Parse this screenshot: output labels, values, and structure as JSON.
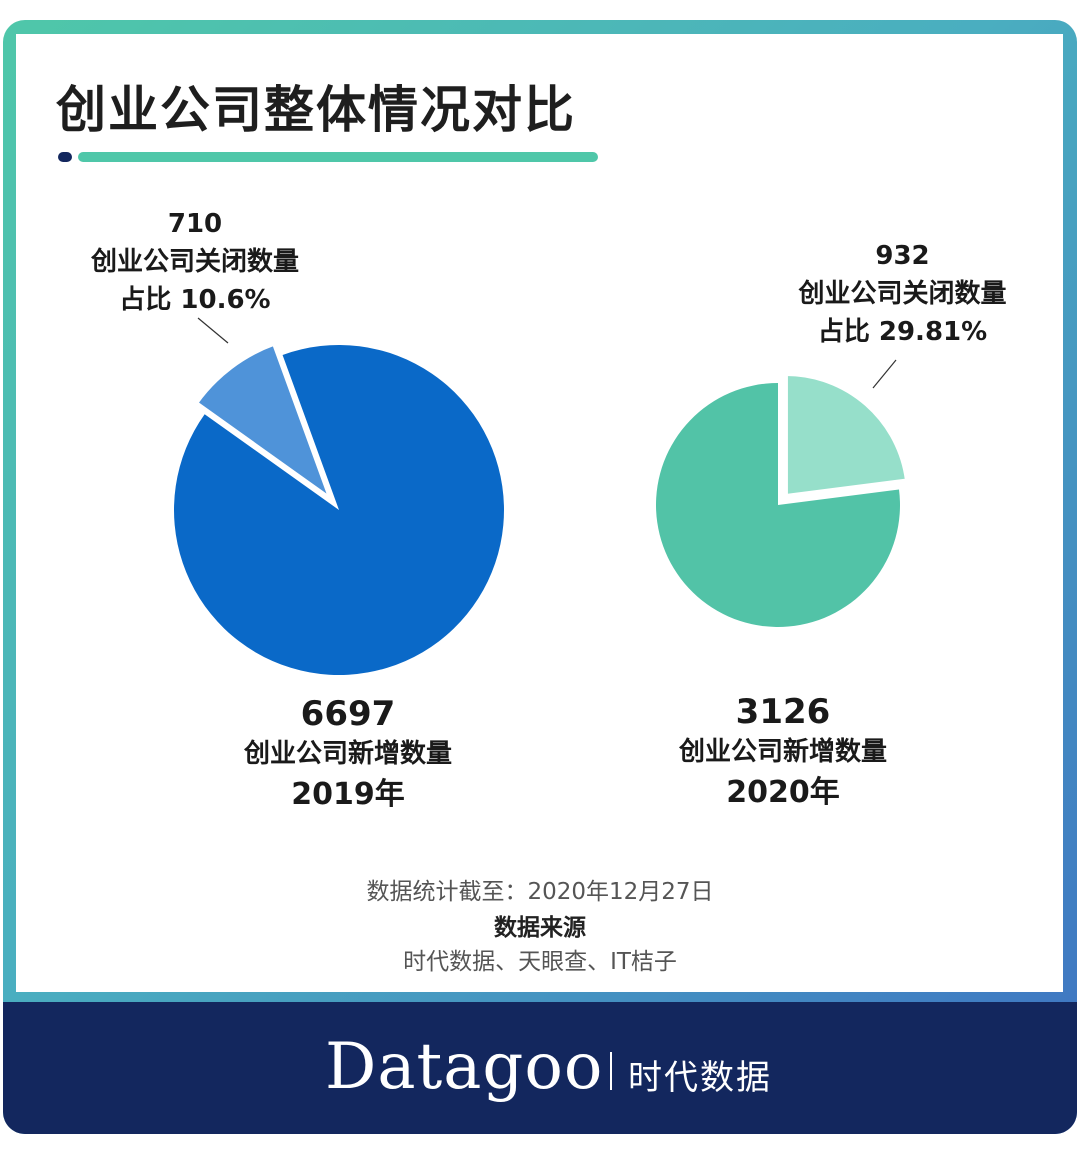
{
  "title": "创业公司整体情况对比",
  "colors": {
    "frame_start": "#4fc7a9",
    "frame_end": "#3e72c2",
    "footer": "#13275e",
    "y2019_main": "#0a69c8",
    "y2019_closed": "#4f93d9",
    "y2020_main": "#52c3a7",
    "y2020_closed": "#96dfca"
  },
  "chart_data": [
    {
      "type": "pie",
      "year_label": "2019年",
      "slices": [
        {
          "label": "创业公司新增数量",
          "value": 6697
        },
        {
          "label": "创业公司关闭数量",
          "value": 710,
          "share_label": "占比 10.6%",
          "exploded": true
        }
      ]
    },
    {
      "type": "pie",
      "year_label": "2020年",
      "slices": [
        {
          "label": "创业公司新增数量",
          "value": 3126
        },
        {
          "label": "创业公司关闭数量",
          "value": 932,
          "share_label": "占比 29.81%",
          "exploded": true
        }
      ]
    }
  ],
  "labels": {
    "y2019": {
      "closed_value": "710",
      "closed_text": "创业公司关闭数量",
      "closed_share": "占比  10.6%",
      "new_value": "6697",
      "new_text": "创业公司新增数量",
      "year": "2019年"
    },
    "y2020": {
      "closed_value": "932",
      "closed_text": "创业公司关闭数量",
      "closed_share": "占比  29.81%",
      "new_value": "3126",
      "new_text": "创业公司新增数量",
      "year": "2020年"
    }
  },
  "source": {
    "date_line": "数据统计截至：2020年12月27日",
    "heading": "数据来源",
    "sources": "时代数据、天眼查、IT桔子"
  },
  "brand": {
    "name": "Datagoo",
    "cn": "时代数据"
  }
}
